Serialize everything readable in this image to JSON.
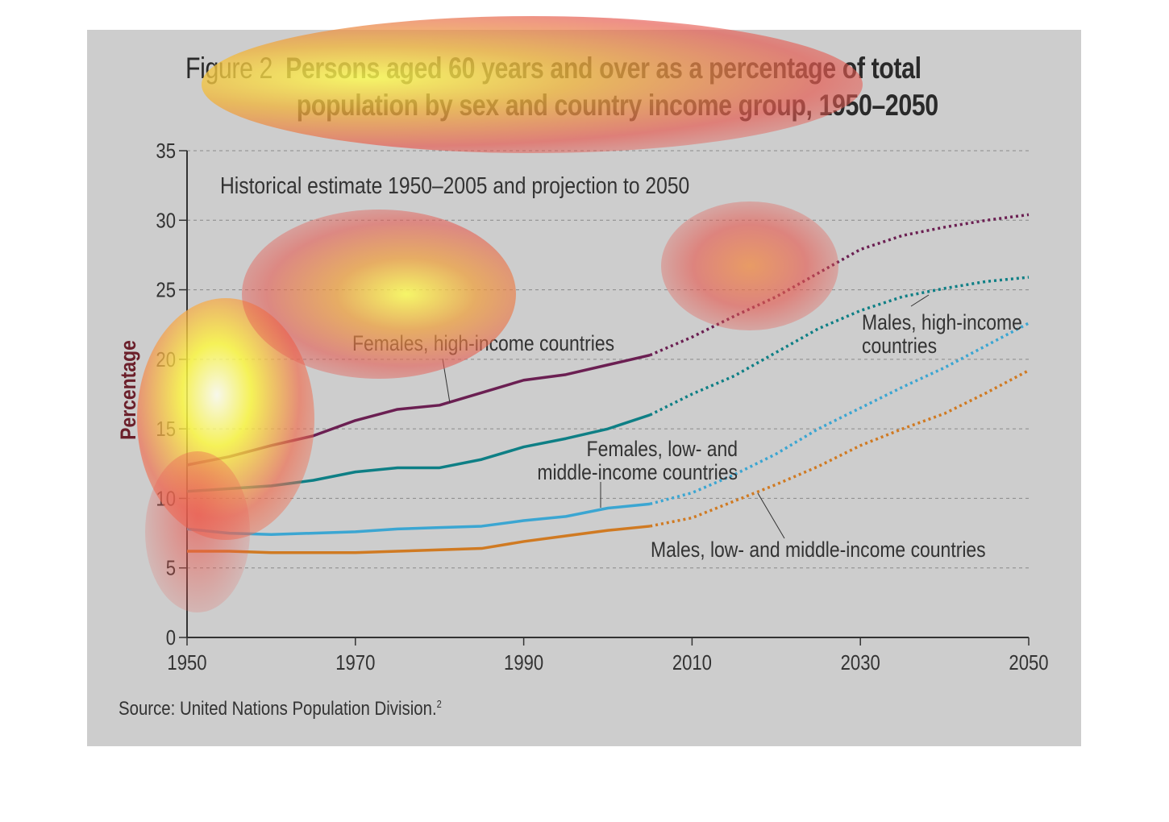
{
  "figure": {
    "label": "Figure 2",
    "title_line1": "Persons aged 60 years and over as a percentage of total",
    "title_line2": "population by sex and country income group, 1950–2050",
    "source": "Source: United Nations Population Division.",
    "source_superscript": "2"
  },
  "chart_data": {
    "type": "line",
    "title": "Persons aged 60 years and over as a percentage of total population by sex and country income group, 1950–2050",
    "subtitle": "Historical estimate 1950–2005 and projection to 2050",
    "xlabel": "",
    "ylabel": "Percentage",
    "xlim": [
      1950,
      2050
    ],
    "ylim": [
      0,
      35
    ],
    "x_ticks": [
      "1950",
      "1970",
      "1990",
      "2010",
      "2030",
      "2050"
    ],
    "y_ticks": [
      "0",
      "5",
      "10",
      "15",
      "20",
      "25",
      "30",
      "35"
    ],
    "grid": "horizontal dashed",
    "projection_start": 2005,
    "x": [
      1950,
      1955,
      1960,
      1965,
      1970,
      1975,
      1980,
      1985,
      1990,
      1995,
      2000,
      2005,
      2010,
      2015,
      2020,
      2025,
      2030,
      2035,
      2040,
      2045,
      2050
    ],
    "series": [
      {
        "name": "Females, high-income countries",
        "color": "#6b1f52",
        "values": [
          12.4,
          13.0,
          13.8,
          14.5,
          15.6,
          16.4,
          16.7,
          17.6,
          18.5,
          18.9,
          19.6,
          20.3,
          21.6,
          23.1,
          24.5,
          26.2,
          27.9,
          28.9,
          29.5,
          30.0,
          30.4
        ]
      },
      {
        "name": "Males, high-income countries",
        "color": "#0e7f85",
        "values": [
          10.5,
          10.7,
          10.9,
          11.3,
          11.9,
          12.2,
          12.2,
          12.8,
          13.7,
          14.3,
          15.0,
          16.0,
          17.5,
          18.8,
          20.5,
          22.2,
          23.5,
          24.5,
          25.1,
          25.6,
          25.9
        ]
      },
      {
        "name": "Females, low- and middle-income countries",
        "color": "#3ba6d2",
        "values": [
          7.8,
          7.5,
          7.4,
          7.5,
          7.6,
          7.8,
          7.9,
          8.0,
          8.4,
          8.7,
          9.3,
          9.6,
          10.4,
          11.7,
          13.2,
          15.0,
          16.5,
          18.0,
          19.4,
          21.0,
          22.6
        ]
      },
      {
        "name": "Males, low- and middle-income countries",
        "color": "#d07a22",
        "values": [
          6.2,
          6.2,
          6.1,
          6.1,
          6.1,
          6.2,
          6.3,
          6.4,
          6.9,
          7.3,
          7.7,
          8.0,
          8.6,
          9.8,
          11.0,
          12.3,
          13.8,
          15.0,
          16.1,
          17.6,
          19.2
        ]
      }
    ],
    "annotations": [
      {
        "text": "Females, high-income countries"
      },
      {
        "text": "Males, high-income countries",
        "lines": [
          "Males, high-income",
          "countries"
        ]
      },
      {
        "text": "Females, low- and middle-income countries",
        "lines": [
          "Females, low- and",
          "middle-income countries"
        ]
      },
      {
        "text": "Males, low- and middle-income countries"
      }
    ],
    "legend": "none (inline labels)"
  }
}
